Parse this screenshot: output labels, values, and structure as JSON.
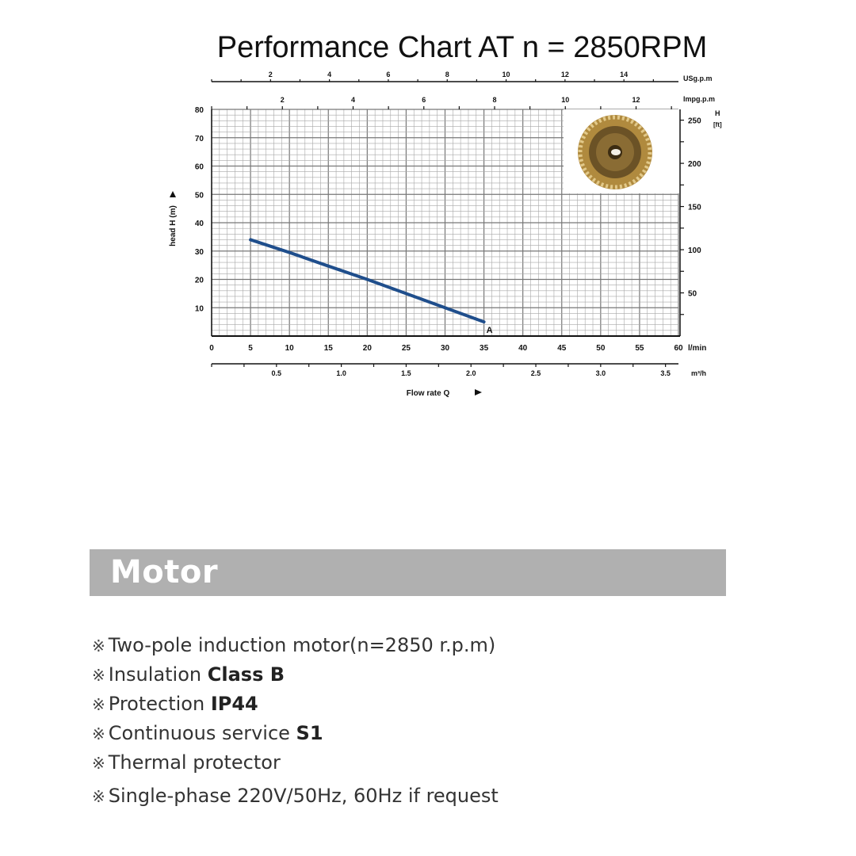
{
  "chart_data": {
    "type": "line",
    "title": "Performance Chart AT n = 2850RPM",
    "xlabel": "Flow rate Q",
    "ylabel": "head H (m)",
    "x_unit": "l/min",
    "xlim": [
      0,
      60
    ],
    "ylim": [
      0,
      80
    ],
    "grid": true,
    "x_ticks": [
      "0",
      "5",
      "10",
      "15",
      "20",
      "25",
      "30",
      "35",
      "40",
      "45",
      "50",
      "55",
      "60"
    ],
    "y_ticks": [
      "10",
      "20",
      "30",
      "40",
      "50",
      "60",
      "70",
      "80"
    ],
    "secondary_axes": {
      "usgpm": {
        "unit": "USg.p.m",
        "ticks": [
          "2",
          "4",
          "6",
          "8",
          "10",
          "12",
          "14"
        ]
      },
      "impgpm": {
        "unit": "Impg.p.m",
        "ticks": [
          "2",
          "4",
          "6",
          "8",
          "10",
          "12"
        ]
      },
      "m3h": {
        "unit": "m³/h",
        "ticks": [
          "0.5",
          "1.0",
          "1.5",
          "2.0",
          "2.5",
          "3.0",
          "3.5"
        ]
      },
      "ft": {
        "unit_line1": "H",
        "unit_line2": "[ft]",
        "ticks": [
          "50",
          "100",
          "150",
          "200",
          "250"
        ]
      }
    },
    "series": [
      {
        "name": "A",
        "color": "#1f4e8c",
        "x": [
          5,
          10,
          15,
          20,
          25,
          30,
          35
        ],
        "y": [
          34,
          29.5,
          24.7,
          20,
          15,
          10,
          5
        ]
      }
    ],
    "inset_image": "impeller-photo"
  },
  "motor": {
    "heading": "Motor",
    "bullet_symbol": "※",
    "items": [
      {
        "text": "Two-pole induction motor(n=2850 r.p.m)",
        "bold": ""
      },
      {
        "text": "Insulation ",
        "bold": "Class B"
      },
      {
        "text": "Protection ",
        "bold": "IP44"
      },
      {
        "text": "Continuous service ",
        "bold": "S1"
      },
      {
        "text": "Thermal protector",
        "bold": ""
      },
      {
        "text": "Single-phase 220V/50Hz, 60Hz if request",
        "bold": ""
      }
    ]
  }
}
